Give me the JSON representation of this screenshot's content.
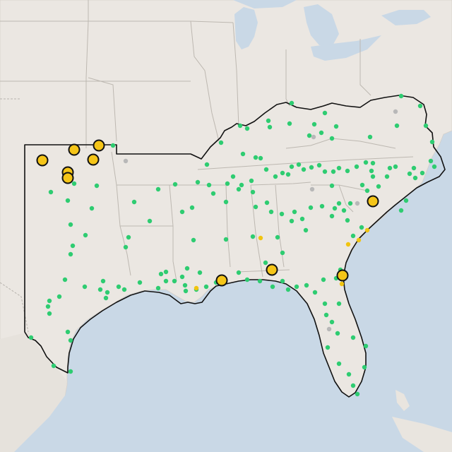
{
  "map": {
    "title": "",
    "colors": {
      "water": "#c9d8e6",
      "land": "#ebe7e2",
      "region_outline": "#111111",
      "marker_small_normal": "#2ecc71",
      "marker_small_alert": "#f1c40f",
      "marker_small_inactive": "#b8b8b8",
      "marker_large_alert": "#f5c518"
    },
    "markers": {
      "large_alert_count": 12,
      "small_alert_count": 6,
      "inactive_count": 6,
      "legend": []
    }
  }
}
